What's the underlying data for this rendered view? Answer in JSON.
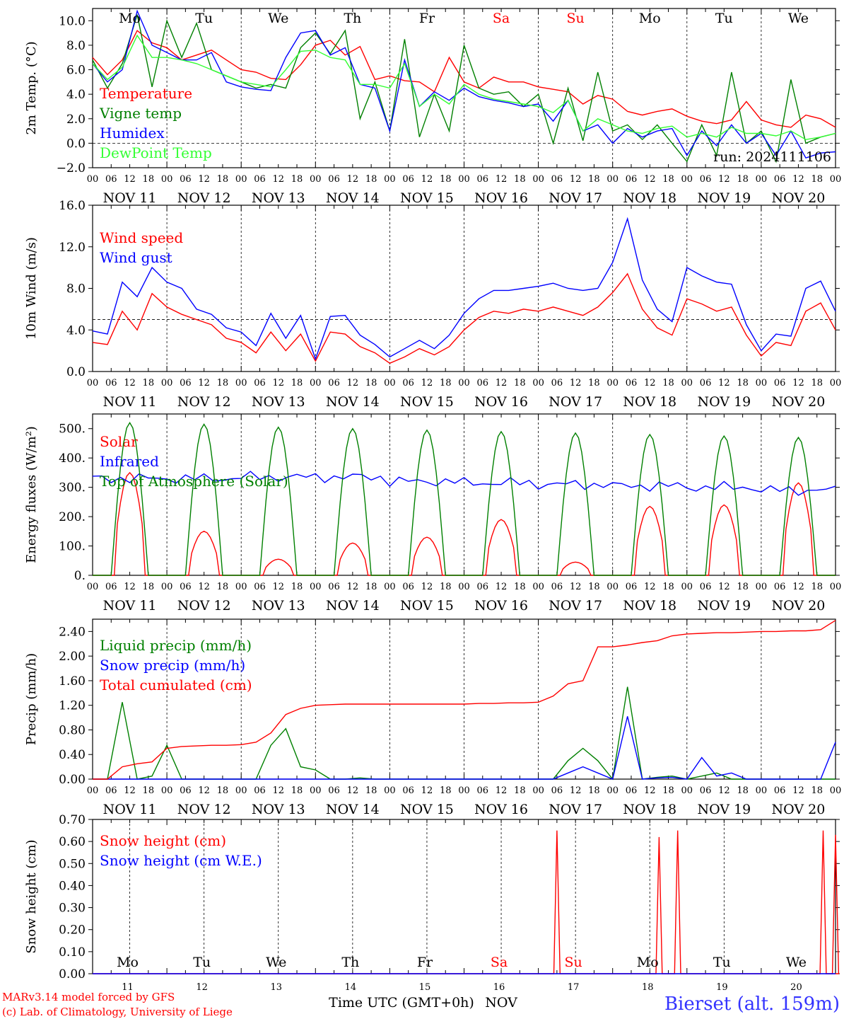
{
  "days": [
    "Mo",
    "Tu",
    "We",
    "Th",
    "Fr",
    "Sa",
    "Su",
    "Mo",
    "Tu",
    "We"
  ],
  "weekend": [
    false,
    false,
    false,
    false,
    false,
    true,
    true,
    false,
    false,
    false
  ],
  "dates": [
    "NOV 11",
    "NOV 12",
    "NOV 13",
    "NOV 14",
    "NOV 15",
    "NOV 16",
    "NOV 17",
    "NOV 18",
    "NOV 19",
    "NOV 20"
  ],
  "hour_labels": [
    "00",
    "06",
    "12",
    "18"
  ],
  "bottom_day_numbers": [
    "11",
    "12",
    "13",
    "14",
    "15",
    "16",
    "17",
    "18",
    "19",
    "20"
  ],
  "colors": {
    "red": "#ff0000",
    "green": "#008000",
    "blue": "#0000ff",
    "lightgreen": "#33ff33",
    "grid": "#000000"
  },
  "footer": {
    "credit1": "MARv3.14 model forced by GFS",
    "credit2": "(c) Lab. of Climatology, University of Liege",
    "xlabel": "Time UTC (GMT+0h)",
    "month": "NOV",
    "station": "Bierset (alt. 159m)"
  },
  "run_label": "run: 2024111106",
  "chart_data": [
    {
      "type": "line",
      "ylabel": "2m Temp. (°C)",
      "yticks": [
        "10.0",
        "8.0",
        "6.0",
        "4.0",
        "2.0",
        "0.0",
        "−2.0"
      ],
      "ylim": [
        -2,
        11
      ],
      "ref_line": 0,
      "step_hours": 6,
      "series": [
        {
          "name": "Temperature",
          "color": "#ff0000",
          "values": [
            7.0,
            5.6,
            6.8,
            9.2,
            8.2,
            7.8,
            6.8,
            7.2,
            7.6,
            6.8,
            6.0,
            5.8,
            5.3,
            5.2,
            6.4,
            8.0,
            8.4,
            7.2,
            7.9,
            5.2,
            5.5,
            5.1,
            5.0,
            4.2,
            7.0,
            5.0,
            4.5,
            5.4,
            5.0,
            5.0,
            4.6,
            4.4,
            4.2,
            3.2,
            3.9,
            3.6,
            2.6,
            2.3,
            2.6,
            2.8,
            2.2,
            1.8,
            1.6,
            1.9,
            3.4,
            1.9,
            1.5,
            1.3,
            2.3,
            2.0,
            1.3
          ]
        },
        {
          "name": "Vigne temp",
          "color": "#008000",
          "values": [
            6.8,
            4.5,
            6.5,
            10.5,
            4.6,
            10.0,
            7.0,
            9.8,
            6.0,
            5.5,
            5.0,
            4.5,
            4.8,
            4.5,
            7.8,
            9.0,
            7.3,
            9.2,
            2.0,
            5.0,
            1.0,
            8.5,
            0.5,
            4.0,
            1.0,
            8.0,
            4.5,
            4.0,
            4.2,
            3.0,
            4.0,
            0.0,
            4.5,
            0.2,
            5.8,
            1.0,
            1.5,
            0.3,
            1.5,
            0.0,
            -1.5,
            1.5,
            -1.0,
            5.8,
            0.0,
            1.0,
            -1.5,
            5.2,
            0.0,
            0.5,
            0.8
          ]
        },
        {
          "name": "Humidex",
          "color": "#0000ff",
          "values": [
            6.5,
            5.0,
            6.0,
            10.8,
            8.0,
            7.4,
            6.8,
            6.8,
            7.4,
            5.0,
            4.6,
            4.4,
            4.3,
            7.0,
            9.0,
            9.2,
            7.2,
            7.8,
            4.8,
            4.5,
            1.0,
            6.8,
            3.0,
            4.2,
            3.5,
            4.5,
            3.8,
            3.5,
            3.3,
            3.0,
            3.2,
            1.8,
            3.5,
            1.0,
            1.5,
            0.0,
            1.2,
            0.5,
            1.0,
            1.2,
            -1.0,
            1.0,
            -0.2,
            1.5,
            0.0,
            0.8,
            -1.0,
            1.0,
            -1.2,
            -0.8,
            -0.7
          ]
        },
        {
          "name": "DewPoint Temp",
          "color": "#33ff33",
          "values": [
            6.5,
            5.2,
            6.2,
            8.8,
            7.0,
            7.0,
            6.8,
            6.5,
            6.0,
            5.5,
            5.0,
            4.8,
            4.6,
            6.0,
            7.5,
            7.6,
            7.0,
            6.8,
            4.8,
            4.8,
            4.5,
            6.5,
            3.0,
            4.0,
            3.2,
            4.8,
            4.0,
            3.6,
            3.4,
            3.2,
            3.0,
            2.5,
            3.5,
            1.0,
            2.0,
            1.5,
            1.0,
            0.8,
            1.2,
            1.4,
            0.5,
            0.8,
            0.5,
            1.3,
            0.8,
            0.8,
            0.6,
            1.0,
            0.3,
            0.5,
            0.8
          ]
        }
      ],
      "annotation": "run: 2024111106"
    },
    {
      "type": "line",
      "ylabel": "10m Wind (m/s)",
      "yticks": [
        "16.0",
        "12.0",
        "8.0",
        "4.0",
        "0.0"
      ],
      "ylim": [
        0,
        16
      ],
      "ref_line": 5,
      "step_hours": 6,
      "series": [
        {
          "name": "Wind speed",
          "color": "#ff0000",
          "values": [
            2.8,
            2.6,
            5.8,
            4.0,
            7.5,
            6.2,
            5.5,
            5.0,
            4.5,
            3.2,
            2.8,
            1.8,
            3.8,
            2.0,
            3.6,
            1.0,
            3.8,
            3.6,
            2.4,
            1.8,
            0.8,
            1.4,
            2.2,
            1.6,
            2.4,
            4.0,
            5.2,
            5.8,
            5.6,
            6.0,
            5.8,
            6.2,
            5.8,
            5.4,
            6.2,
            7.6,
            9.4,
            6.0,
            4.2,
            3.5,
            7.0,
            6.5,
            5.8,
            6.2,
            3.5,
            1.5,
            2.8,
            2.5,
            5.8,
            6.6,
            4.0
          ]
        },
        {
          "name": "Wind gust",
          "color": "#0000ff",
          "values": [
            3.9,
            3.6,
            8.6,
            7.2,
            10.0,
            8.6,
            8.0,
            6.0,
            5.5,
            4.2,
            3.8,
            2.5,
            5.6,
            3.2,
            5.4,
            1.2,
            5.3,
            5.4,
            3.5,
            2.6,
            1.4,
            2.2,
            3.0,
            2.2,
            3.5,
            5.6,
            7.0,
            7.8,
            7.8,
            8.0,
            8.2,
            8.5,
            8.0,
            7.8,
            8.0,
            10.5,
            14.7,
            8.8,
            6.0,
            4.8,
            10.0,
            9.2,
            8.6,
            8.4,
            4.5,
            2.0,
            3.6,
            3.4,
            8.0,
            8.7,
            5.8
          ]
        }
      ]
    },
    {
      "type": "line",
      "ylabel": "Energy fluxes (W/m²)",
      "yticks": [
        "500.",
        "400.",
        "300.",
        "200.",
        "100.",
        "0."
      ],
      "ylim": [
        0,
        550
      ],
      "peaks_hour": 12,
      "series": [
        {
          "name": "Solar",
          "color": "#ff0000",
          "daily_peak": [
            350,
            150,
            55,
            110,
            130,
            190,
            45,
            235,
            240,
            315
          ]
        },
        {
          "name": "Infrared",
          "color": "#0000ff",
          "base_values": [
            330,
            330,
            335,
            335,
            320,
            315,
            310,
            305,
            300,
            290
          ]
        },
        {
          "name": "Top of Atmosphere (Solar)",
          "color": "#008000",
          "daily_peak": [
            520,
            515,
            505,
            500,
            495,
            490,
            485,
            480,
            475,
            470
          ]
        }
      ]
    },
    {
      "type": "line",
      "ylabel": "Precip (mm/h)",
      "yticks": [
        "2.40",
        "2.00",
        "1.60",
        "1.20",
        "0.80",
        "0.40",
        "0.00"
      ],
      "ylim": [
        0,
        2.6
      ],
      "step_hours": 6,
      "series": [
        {
          "name": "Liquid precip (mm/h)",
          "color": "#008000",
          "values": [
            0.0,
            0.0,
            1.25,
            0.0,
            0.05,
            0.55,
            0.0,
            0.0,
            0.0,
            0.0,
            0.0,
            0.0,
            0.55,
            0.82,
            0.2,
            0.15,
            0.0,
            0.0,
            0.02,
            0.0,
            0.0,
            0.0,
            0.0,
            0.0,
            0.0,
            0.0,
            0.0,
            0.0,
            0.0,
            0.0,
            0.0,
            0.0,
            0.3,
            0.5,
            0.3,
            0.0,
            1.5,
            0.0,
            0.03,
            0.05,
            0.0,
            0.05,
            0.1,
            0.0,
            0.0,
            0.0,
            0.0,
            0.0,
            0.0,
            0.0,
            0.0
          ]
        },
        {
          "name": "Snow precip (mm/h)",
          "color": "#0000ff",
          "values": [
            0.0,
            0.0,
            0.0,
            0.0,
            0.0,
            0.0,
            0.0,
            0.0,
            0.0,
            0.0,
            0.0,
            0.0,
            0.0,
            0.0,
            0.0,
            0.0,
            0.0,
            0.0,
            0.0,
            0.0,
            0.0,
            0.0,
            0.0,
            0.0,
            0.0,
            0.0,
            0.0,
            0.0,
            0.0,
            0.0,
            0.0,
            0.0,
            0.1,
            0.2,
            0.1,
            0.0,
            1.02,
            0.0,
            0.02,
            0.03,
            0.0,
            0.35,
            0.05,
            0.1,
            0.0,
            0.0,
            0.0,
            0.0,
            0.0,
            0.0,
            0.6
          ]
        },
        {
          "name": "Total cumulated (cm)",
          "color": "#ff0000",
          "values": [
            0.0,
            0.0,
            0.2,
            0.25,
            0.28,
            0.5,
            0.53,
            0.54,
            0.55,
            0.55,
            0.56,
            0.6,
            0.75,
            1.05,
            1.15,
            1.2,
            1.21,
            1.22,
            1.22,
            1.22,
            1.22,
            1.22,
            1.22,
            1.22,
            1.22,
            1.22,
            1.23,
            1.23,
            1.24,
            1.24,
            1.25,
            1.35,
            1.55,
            1.6,
            2.15,
            2.15,
            2.18,
            2.22,
            2.25,
            2.33,
            2.36,
            2.37,
            2.38,
            2.38,
            2.39,
            2.4,
            2.4,
            2.41,
            2.41,
            2.43,
            2.58
          ]
        }
      ]
    },
    {
      "type": "line",
      "ylabel": "Snow height (cm)",
      "yticks": [
        "0.70",
        "0.60",
        "0.50",
        "0.40",
        "0.30",
        "0.20",
        "0.10",
        "0.00"
      ],
      "ylim": [
        0,
        0.7
      ],
      "series": [
        {
          "name": "Snow height (cm)",
          "color": "#ff0000",
          "spikes_hour": [
            150,
            183,
            189,
            236,
            240
          ],
          "spikes_value": [
            0.65,
            0.62,
            0.65,
            0.65,
            0.63
          ]
        },
        {
          "name": "Snow height (cm W.E.)",
          "color": "#0000ff",
          "values": [
            0.0,
            0.0
          ]
        }
      ]
    }
  ]
}
